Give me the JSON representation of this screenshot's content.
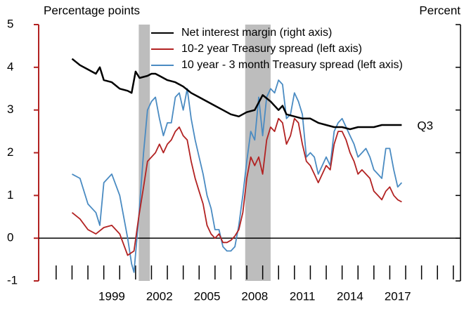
{
  "chart_data": {
    "type": "line",
    "y_label": "Percentage points",
    "y2_label": "Percent",
    "annotation": "Q3",
    "xlim": [
      1994.9,
      2021.45
    ],
    "xticks": [
      {
        "value": 1999.5,
        "label": "1999"
      },
      {
        "value": 2002.5,
        "label": "2002"
      },
      {
        "value": 2005.5,
        "label": "2005"
      },
      {
        "value": 2008.5,
        "label": "2008"
      },
      {
        "value": 2011.5,
        "label": "2011"
      },
      {
        "value": 2014.5,
        "label": "2014"
      },
      {
        "value": 2017.5,
        "label": "2017"
      }
    ],
    "xminor_ticks": [
      1996,
      1997,
      1998,
      1999,
      2000,
      2001,
      2002,
      2003,
      2004,
      2005,
      2006,
      2007,
      2008,
      2009,
      2010,
      2011,
      2012,
      2013,
      2014,
      2015,
      2016,
      2017,
      2018,
      2019,
      2020,
      2021
    ],
    "ylim": [
      -1,
      5
    ],
    "yticks": [
      -1,
      0,
      1,
      2,
      3,
      4,
      5
    ],
    "y2lim": [
      -1,
      5
    ],
    "zero_line": true,
    "recessions": [
      [
        2001.2,
        2001.9
      ],
      [
        2007.9,
        2009.5
      ]
    ],
    "recession_color": "#bdbdbd",
    "series": [
      {
        "name": "Net interest margin (right axis)",
        "color": "#000000",
        "axis": "y2",
        "x": [
          1997,
          1997.5,
          1998,
          1998.5,
          1998.75,
          1999,
          1999.5,
          2000,
          2000.5,
          2000.75,
          2001,
          2001.25,
          2001.75,
          2002,
          2002.25,
          2002.5,
          2003,
          2003.5,
          2004,
          2004.5,
          2005,
          2005.5,
          2006,
          2006.5,
          2007,
          2007.5,
          2008,
          2008.5,
          2009,
          2009.5,
          2010,
          2010.25,
          2010.5,
          2011,
          2011.5,
          2012,
          2012.5,
          2013,
          2013.5,
          2014,
          2014.5,
          2015,
          2015.5,
          2016,
          2016.5,
          2017,
          2017.75
        ],
        "values": [
          4.2,
          4.05,
          3.95,
          3.85,
          4.0,
          3.7,
          3.65,
          3.5,
          3.45,
          3.4,
          3.9,
          3.75,
          3.8,
          3.85,
          3.85,
          3.8,
          3.7,
          3.65,
          3.55,
          3.4,
          3.3,
          3.2,
          3.1,
          3.0,
          2.9,
          2.85,
          2.95,
          3.0,
          3.35,
          3.2,
          3.0,
          3.1,
          2.9,
          2.85,
          2.8,
          2.8,
          2.7,
          2.65,
          2.6,
          2.6,
          2.55,
          2.6,
          2.6,
          2.6,
          2.65,
          2.65,
          2.65
        ]
      },
      {
        "name": "10-2 year Treasury spread (left axis)",
        "color": "#b22222",
        "x": [
          1997,
          1997.5,
          1998,
          1998.5,
          1999,
          1999.5,
          2000,
          2000.5,
          2000.9,
          2001.2,
          2001.5,
          2001.75,
          2002,
          2002.25,
          2002.5,
          2002.75,
          2003,
          2003.25,
          2003.5,
          2003.75,
          2004,
          2004.25,
          2004.5,
          2004.75,
          2005,
          2005.25,
          2005.5,
          2005.75,
          2006,
          2006.25,
          2006.5,
          2006.75,
          2007,
          2007.25,
          2007.5,
          2007.75,
          2008,
          2008.25,
          2008.5,
          2008.75,
          2009,
          2009.25,
          2009.5,
          2009.75,
          2010,
          2010.25,
          2010.5,
          2010.75,
          2011,
          2011.25,
          2011.5,
          2011.75,
          2012,
          2012.25,
          2012.5,
          2012.75,
          2013,
          2013.25,
          2013.5,
          2013.75,
          2014,
          2014.25,
          2014.5,
          2014.75,
          2015,
          2015.25,
          2015.5,
          2015.75,
          2016,
          2016.25,
          2016.5,
          2016.75,
          2017,
          2017.25,
          2017.5,
          2017.75
        ],
        "values": [
          0.6,
          0.45,
          0.2,
          0.1,
          0.25,
          0.3,
          0.1,
          -0.4,
          -0.3,
          0.5,
          1.2,
          1.8,
          1.9,
          2.0,
          2.2,
          2.0,
          2.2,
          2.3,
          2.5,
          2.6,
          2.4,
          2.3,
          1.8,
          1.4,
          1.1,
          0.8,
          0.3,
          0.1,
          0.0,
          0.1,
          -0.1,
          -0.1,
          -0.05,
          0.05,
          0.2,
          0.6,
          1.4,
          1.9,
          1.7,
          1.9,
          1.5,
          2.3,
          2.6,
          2.5,
          2.8,
          2.7,
          2.2,
          2.4,
          2.8,
          2.7,
          2.2,
          1.8,
          1.7,
          1.5,
          1.3,
          1.5,
          1.7,
          1.6,
          2.2,
          2.5,
          2.5,
          2.3,
          2.0,
          1.8,
          1.5,
          1.6,
          1.5,
          1.4,
          1.1,
          1.0,
          0.9,
          1.1,
          1.2,
          1.0,
          0.9,
          0.85
        ]
      },
      {
        "name": "10 year - 3 month Treasury spread (left axis)",
        "color": "#4a8bc2",
        "x": [
          1997,
          1997.5,
          1998,
          1998.5,
          1998.75,
          1999,
          1999.5,
          2000,
          2000.5,
          2000.75,
          2000.9,
          2001.2,
          2001.5,
          2001.75,
          2002,
          2002.25,
          2002.5,
          2002.75,
          2003,
          2003.25,
          2003.5,
          2003.75,
          2004,
          2004.25,
          2004.5,
          2004.75,
          2005,
          2005.25,
          2005.5,
          2005.75,
          2006,
          2006.25,
          2006.5,
          2006.75,
          2007,
          2007.25,
          2007.5,
          2007.75,
          2008,
          2008.25,
          2008.5,
          2008.75,
          2009,
          2009.25,
          2009.5,
          2009.75,
          2010,
          2010.25,
          2010.5,
          2010.75,
          2011,
          2011.25,
          2011.5,
          2011.75,
          2012,
          2012.25,
          2012.5,
          2012.75,
          2013,
          2013.25,
          2013.5,
          2013.75,
          2014,
          2014.25,
          2014.5,
          2014.75,
          2015,
          2015.25,
          2015.5,
          2015.75,
          2016,
          2016.25,
          2016.5,
          2016.75,
          2017,
          2017.25,
          2017.5,
          2017.75
        ],
        "values": [
          1.5,
          1.4,
          0.8,
          0.6,
          0.3,
          1.3,
          1.5,
          1.0,
          0.0,
          -0.6,
          -0.8,
          0.5,
          2.0,
          3.0,
          3.2,
          3.3,
          2.8,
          2.4,
          2.7,
          2.7,
          3.3,
          3.4,
          3.0,
          3.5,
          2.8,
          2.3,
          1.9,
          1.5,
          1.0,
          0.7,
          0.2,
          0.2,
          -0.2,
          -0.3,
          -0.3,
          -0.2,
          0.3,
          1.0,
          1.8,
          2.5,
          2.3,
          3.3,
          2.4,
          3.3,
          3.5,
          3.4,
          3.7,
          3.6,
          2.8,
          2.9,
          3.4,
          3.2,
          2.9,
          1.9,
          2.0,
          1.9,
          1.5,
          1.7,
          1.9,
          1.7,
          2.5,
          2.7,
          2.8,
          2.6,
          2.4,
          2.2,
          1.9,
          2.0,
          2.1,
          1.9,
          1.6,
          1.5,
          1.4,
          2.1,
          2.1,
          1.6,
          1.2,
          1.3
        ]
      }
    ]
  }
}
